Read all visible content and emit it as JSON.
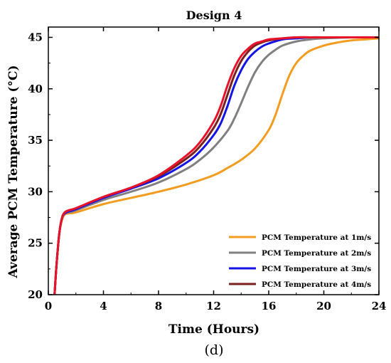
{
  "chart_data": {
    "type": "line",
    "title": "Design 4",
    "panel_label": "(d)",
    "xlabel": "Time (Hours)",
    "ylabel": "Average PCM Temperature (°C)",
    "xlim": [
      0,
      24
    ],
    "ylim": [
      20,
      46
    ],
    "xticks": [
      0,
      4,
      8,
      12,
      16,
      20,
      24
    ],
    "yticks": [
      20,
      25,
      30,
      35,
      40,
      45
    ],
    "grid": false,
    "legend_position": "bottom-right",
    "series": [
      {
        "name": "PCM Temperature at 1m/s",
        "color": "#F39C1F",
        "x": [
          0.45,
          0.6,
          0.8,
          1.0,
          1.2,
          1.5,
          2,
          4,
          6,
          8,
          10,
          12,
          13,
          14,
          15,
          16,
          16.5,
          17,
          17.5,
          18,
          18.5,
          19,
          20,
          21,
          22,
          23,
          24
        ],
        "y": [
          20,
          23,
          26,
          27.3,
          27.8,
          27.9,
          28.0,
          28.8,
          29.4,
          30.0,
          30.7,
          31.6,
          32.3,
          33.1,
          34.2,
          36.0,
          37.5,
          39.5,
          41.3,
          42.5,
          43.2,
          43.7,
          44.2,
          44.5,
          44.7,
          44.8,
          44.9
        ]
      },
      {
        "name": "PCM Temperature at 2m/s",
        "color": "#808080",
        "x": [
          0.45,
          0.6,
          0.8,
          1.0,
          1.2,
          1.5,
          2,
          4,
          6,
          8,
          10,
          11,
          12,
          13,
          13.5,
          14,
          14.5,
          15,
          15.5,
          16,
          16.5,
          17,
          18,
          19,
          20,
          22,
          24
        ],
        "y": [
          20,
          23,
          26,
          27.4,
          27.9,
          28.0,
          28.2,
          29.2,
          30.0,
          30.9,
          32.2,
          33.1,
          34.3,
          35.9,
          37.1,
          38.6,
          40.2,
          41.6,
          42.6,
          43.3,
          43.8,
          44.2,
          44.6,
          44.8,
          44.9,
          45.0,
          45.0
        ]
      },
      {
        "name": "PCM Temperature at 3m/s",
        "color": "#1414E6",
        "x": [
          0.45,
          0.6,
          0.8,
          1.0,
          1.2,
          1.5,
          2,
          4,
          6,
          8,
          10,
          11,
          12,
          12.5,
          13,
          13.5,
          14,
          14.5,
          15,
          15.5,
          16,
          17,
          18,
          19,
          20,
          22,
          24
        ],
        "y": [
          20,
          23,
          26,
          27.5,
          27.9,
          28.1,
          28.3,
          29.4,
          30.3,
          31.3,
          32.8,
          33.9,
          35.5,
          36.6,
          38.3,
          40.3,
          41.8,
          42.9,
          43.6,
          44.1,
          44.4,
          44.8,
          44.9,
          45.0,
          45.0,
          45.0,
          45.0
        ]
      },
      {
        "name": "PCM Temperature at 4m/s",
        "color": "#7B1F1F",
        "x": [
          0.45,
          0.6,
          0.8,
          1.0,
          1.2,
          1.5,
          2,
          4,
          6,
          8,
          10,
          11,
          12,
          12.5,
          13,
          13.5,
          14,
          14.5,
          15,
          15.5,
          16,
          17,
          18,
          19,
          20,
          22,
          24
        ],
        "y": [
          20,
          23,
          26,
          27.5,
          28.0,
          28.2,
          28.4,
          29.5,
          30.4,
          31.5,
          33.2,
          34.4,
          36.2,
          37.5,
          39.4,
          41.3,
          42.7,
          43.6,
          44.2,
          44.5,
          44.7,
          44.9,
          45.0,
          45.0,
          45.0,
          45.0,
          45.0
        ]
      },
      {
        "name": "",
        "color": "#E8132A",
        "x": [
          0.45,
          0.6,
          0.8,
          1.0,
          1.2,
          1.5,
          2,
          4,
          6,
          8,
          10,
          11,
          12,
          12.5,
          13,
          13.5,
          14,
          14.5,
          15,
          15.5,
          16,
          17,
          18,
          19,
          20,
          22,
          24
        ],
        "y": [
          20,
          23,
          26,
          27.5,
          28.0,
          28.2,
          28.4,
          29.5,
          30.4,
          31.6,
          33.5,
          34.8,
          36.8,
          38.3,
          40.3,
          42.0,
          43.2,
          43.9,
          44.4,
          44.6,
          44.8,
          44.9,
          45.0,
          45.0,
          45.0,
          45.0,
          45.0
        ]
      }
    ],
    "legend": {
      "entries": [
        {
          "label": "PCM Temperature at 1m/s",
          "color": "#F39C1F"
        },
        {
          "label": "PCM Temperature at 2m/s",
          "color": "#808080"
        },
        {
          "label": "PCM Temperature at 3m/s",
          "color": "#1414E6"
        },
        {
          "label": "PCM Temperature at 4m/s",
          "color": "#7B1F1F"
        }
      ]
    }
  }
}
